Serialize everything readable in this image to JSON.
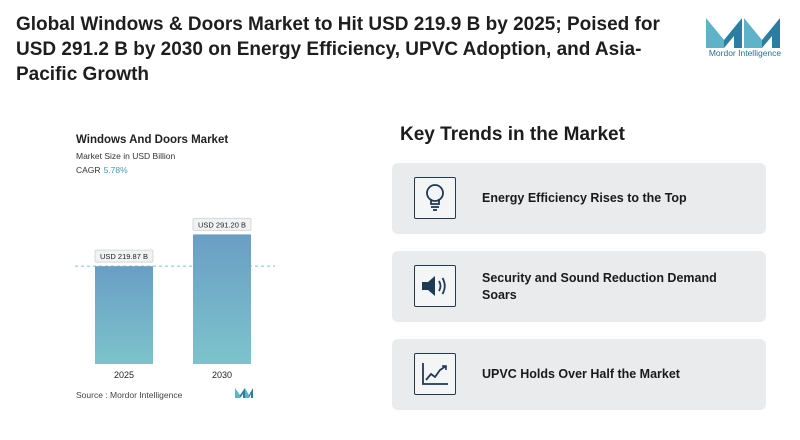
{
  "headline": "Global Windows & Doors Market to Hit USD 219.9 B by 2025; Poised for USD 291.2 B by 2030 on Energy Efficiency, UPVC Adoption, and Asia-Pacific Growth",
  "brand": {
    "name": "Mordor Intelligence",
    "accent": "#5fb3c9",
    "dark": "#2a6f8f"
  },
  "chart_data": {
    "type": "bar",
    "title": "Windows And Doors Market",
    "subtitle": "Market Size in USD Billion",
    "cagr_label": "CAGR",
    "cagr_value": "5.78%",
    "categories": [
      "2025",
      "2030"
    ],
    "values": [
      219.87,
      291.2
    ],
    "data_labels": [
      "USD 219.87 B",
      "USD 291.20 B"
    ],
    "ylim": [
      0,
      300
    ],
    "reference_line": "dashed line at 2025 value",
    "bar_color_top": "#6a9ec4",
    "bar_color_bottom": "#7cc3cc",
    "source": "Source :  Mordor Intelligence"
  },
  "trends": {
    "title": "Key Trends in the Market",
    "items": [
      {
        "label": "Energy Efficiency Rises to the Top",
        "icon": "lightbulb-icon"
      },
      {
        "label": "Security and Sound Reduction Demand Soars",
        "icon": "speaker-icon"
      },
      {
        "label": "UPVC Holds Over Half the Market",
        "icon": "line-chart-icon"
      }
    ]
  }
}
